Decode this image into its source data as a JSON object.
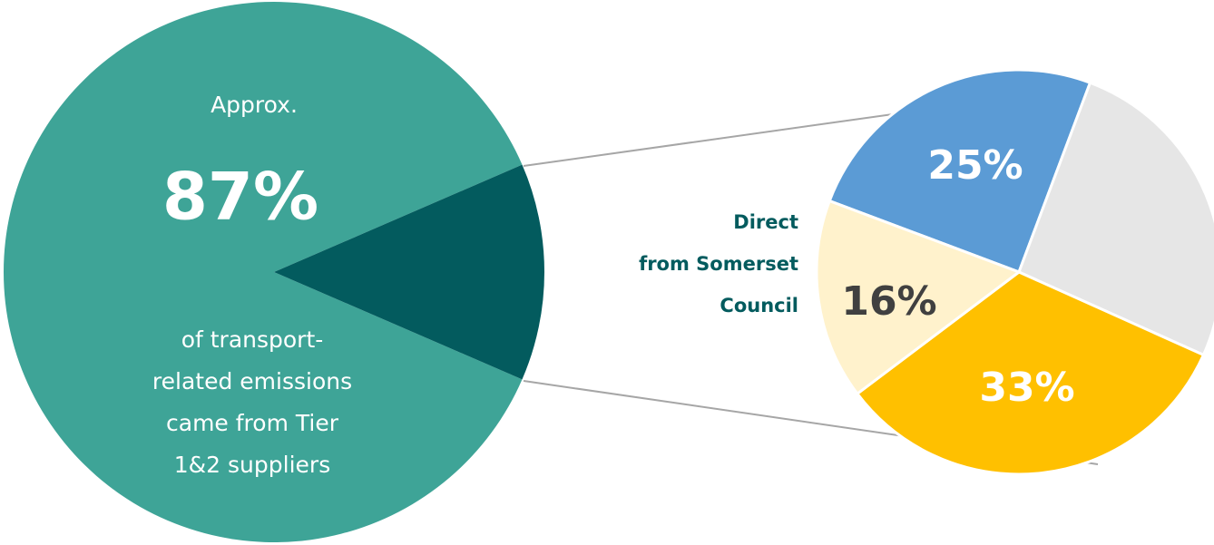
{
  "chart_data": [
    {
      "type": "pie",
      "values": [
        87,
        13
      ],
      "value_labels": [
        "87%",
        null
      ],
      "colors": [
        "#3ea497",
        "#035b5e"
      ],
      "annotations": {
        "top": "Approx.",
        "bottom": [
          "of transport-",
          "related emissions",
          "came from Tier",
          "1&2 suppliers"
        ]
      }
    },
    {
      "type": "pie",
      "values": [
        25,
        26,
        33,
        16
      ],
      "value_labels": [
        "25%",
        null,
        "33%",
        "16%"
      ],
      "colors": [
        "#5b9bd5",
        "#e6e6e6",
        "#ffc000",
        "#fff2cc"
      ],
      "label_colors": [
        "#ffffff",
        null,
        "#ffffff",
        "#404040"
      ],
      "annotations": {
        "side": [
          "Direct",
          "from Somerset",
          "Council"
        ]
      }
    }
  ]
}
